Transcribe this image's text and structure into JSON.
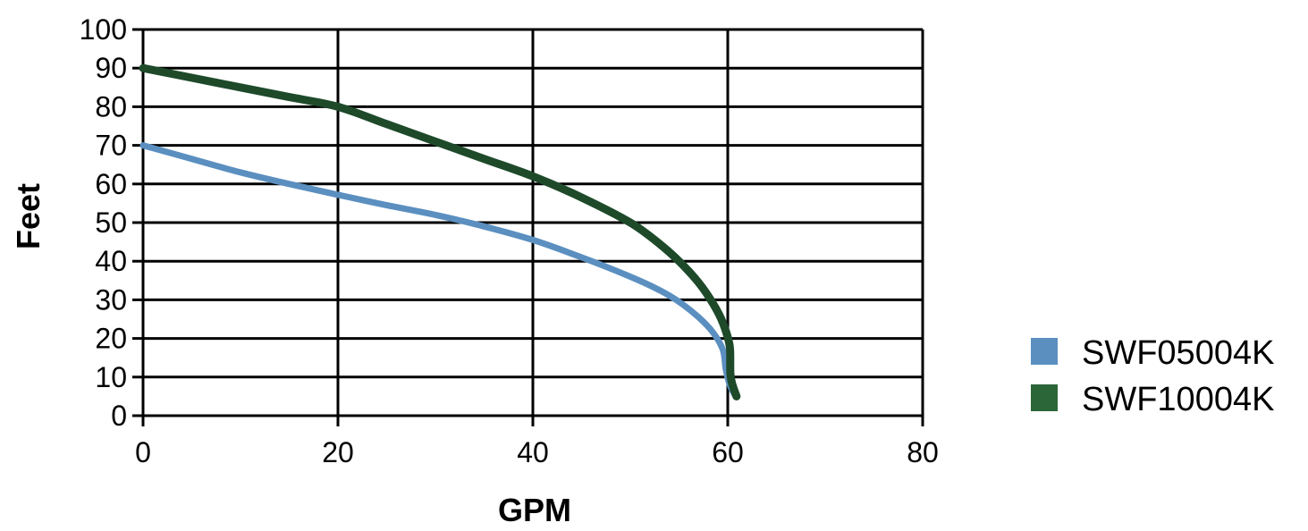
{
  "chart_data": {
    "type": "line",
    "title": "",
    "xlabel": "GPM",
    "ylabel": "Feet",
    "xlim": [
      0,
      80
    ],
    "ylim": [
      0,
      100
    ],
    "xticks": [
      "0",
      "20",
      "40",
      "60",
      "80"
    ],
    "yticks": [
      "0",
      "10",
      "20",
      "30",
      "40",
      "50",
      "60",
      "70",
      "80",
      "90",
      "100"
    ],
    "grid": true,
    "legend_position": "right",
    "series": [
      {
        "name": "SWF05004K",
        "color": "#5b8fc0",
        "points": [
          [
            0,
            70
          ],
          [
            5,
            66.5
          ],
          [
            10,
            63
          ],
          [
            15,
            60
          ],
          [
            20,
            57.2
          ],
          [
            25,
            54.5
          ],
          [
            30,
            52
          ],
          [
            35,
            49
          ],
          [
            40,
            45.5
          ],
          [
            45,
            41
          ],
          [
            50,
            36
          ],
          [
            53,
            32.5
          ],
          [
            55,
            29.5
          ],
          [
            57,
            25.5
          ],
          [
            58.5,
            21.5
          ],
          [
            59.5,
            17
          ],
          [
            59.8,
            12
          ],
          [
            60.2,
            8
          ],
          [
            60.8,
            5
          ]
        ]
      },
      {
        "name": "SWF10004K",
        "color": "#1e4a2a",
        "points": [
          [
            0,
            90
          ],
          [
            5,
            87.5
          ],
          [
            10,
            85
          ],
          [
            15,
            82.5
          ],
          [
            20,
            80
          ],
          [
            25,
            75.5
          ],
          [
            30,
            71
          ],
          [
            35,
            66.5
          ],
          [
            40,
            62
          ],
          [
            45,
            56.5
          ],
          [
            50,
            50
          ],
          [
            53,
            44.5
          ],
          [
            55,
            40
          ],
          [
            57,
            34.5
          ],
          [
            58.5,
            29
          ],
          [
            59.5,
            24
          ],
          [
            60.2,
            18
          ],
          [
            60.3,
            10
          ],
          [
            60.9,
            5
          ]
        ]
      }
    ]
  }
}
